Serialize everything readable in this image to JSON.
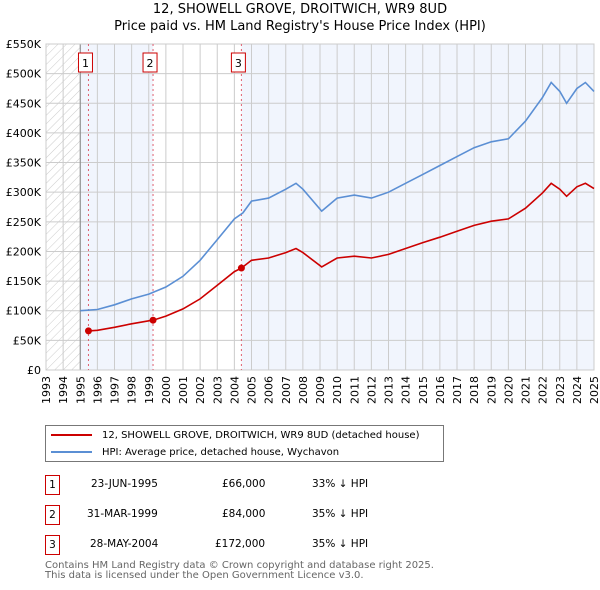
{
  "title": "12, SHOWELL GROVE, DROITWICH, WR9 8UD",
  "subtitle": "Price paid vs. HM Land Registry's House Price Index (HPI)",
  "chart_data": {
    "type": "line",
    "xlim": [
      1993,
      2025
    ],
    "ylim": [
      0,
      550000
    ],
    "y_ticks": [
      0,
      50000,
      100000,
      150000,
      200000,
      250000,
      300000,
      350000,
      400000,
      450000,
      500000,
      550000
    ],
    "y_tick_labels": [
      "£0",
      "£50K",
      "£100K",
      "£150K",
      "£200K",
      "£250K",
      "£300K",
      "£350K",
      "£400K",
      "£450K",
      "£500K",
      "£550K"
    ],
    "x_ticks": [
      1993,
      1994,
      1995,
      1996,
      1997,
      1998,
      1999,
      2000,
      2001,
      2002,
      2003,
      2004,
      2005,
      2006,
      2007,
      2008,
      2009,
      2010,
      2011,
      2012,
      2013,
      2014,
      2015,
      2016,
      2017,
      2018,
      2019,
      2020,
      2021,
      2022,
      2023,
      2024,
      2025
    ],
    "grid": true,
    "series": [
      {
        "name": "HPI: Average price, detached house, Wychavon",
        "color": "#5b8fd4",
        "x": [
          1995.0,
          1996,
          1997,
          1998,
          1999,
          2000,
          2001,
          2002,
          2003,
          2004,
          2004.5,
          2005,
          2006,
          2007,
          2007.6,
          2008,
          2009.1,
          2010,
          2011,
          2012,
          2013,
          2014,
          2015,
          2016,
          2017,
          2018,
          2019,
          2020,
          2021,
          2022,
          2022.5,
          2023,
          2023.4,
          2024,
          2024.5,
          2025
        ],
        "y": [
          100000,
          102000,
          110000,
          120000,
          128000,
          140000,
          158000,
          185000,
          220000,
          255000,
          265000,
          285000,
          290000,
          305000,
          315000,
          305000,
          268000,
          290000,
          295000,
          290000,
          300000,
          315000,
          330000,
          345000,
          360000,
          375000,
          385000,
          390000,
          420000,
          460000,
          485000,
          470000,
          450000,
          475000,
          485000,
          470000
        ]
      },
      {
        "name": "12, SHOWELL GROVE, DROITWICH, WR9 8UD (detached house)",
        "color": "#cc0000",
        "x": [
          1995.48,
          1996,
          1997,
          1998,
          1999,
          1999.25,
          2000,
          2001,
          2002,
          2003,
          2004,
          2004.41,
          2005,
          2006,
          2007,
          2007.6,
          2008,
          2009.1,
          2010,
          2011,
          2012,
          2013,
          2014,
          2015,
          2016,
          2017,
          2018,
          2019,
          2020,
          2021,
          2022,
          2022.5,
          2023,
          2023.4,
          2024,
          2024.5,
          2025
        ],
        "y": [
          66000,
          67000,
          72000,
          78000,
          83000,
          84000,
          91000,
          103000,
          120000,
          143000,
          166000,
          172000,
          185000,
          189000,
          198000,
          205000,
          198000,
          174000,
          189000,
          192000,
          189000,
          195000,
          205000,
          215000,
          224000,
          234000,
          244000,
          251000,
          255000,
          273000,
          299000,
          315000,
          305000,
          293000,
          309000,
          315000,
          306000
        ]
      }
    ],
    "sales": [
      {
        "label": "1",
        "x": 1995.48,
        "price": 66000,
        "date": "23-JUN-1995",
        "price_label": "£66,000",
        "hpi": "33% ↓ HPI"
      },
      {
        "label": "2",
        "x": 1999.25,
        "price": 84000,
        "date": "31-MAR-1999",
        "price_label": "£84,000",
        "hpi": "35% ↓ HPI"
      },
      {
        "label": "3",
        "x": 2004.41,
        "price": 172000,
        "date": "28-MAY-2004",
        "price_label": "£172,000",
        "hpi": "35% ↓ HPI"
      }
    ]
  },
  "legend": {
    "red": "12, SHOWELL GROVE, DROITWICH, WR9 8UD (detached house)",
    "blue": "HPI: Average price, detached house, Wychavon"
  },
  "footer": {
    "line1": "Contains HM Land Registry data © Crown copyright and database right 2025.",
    "line2": "This data is licensed under the Open Government Licence v3.0."
  }
}
